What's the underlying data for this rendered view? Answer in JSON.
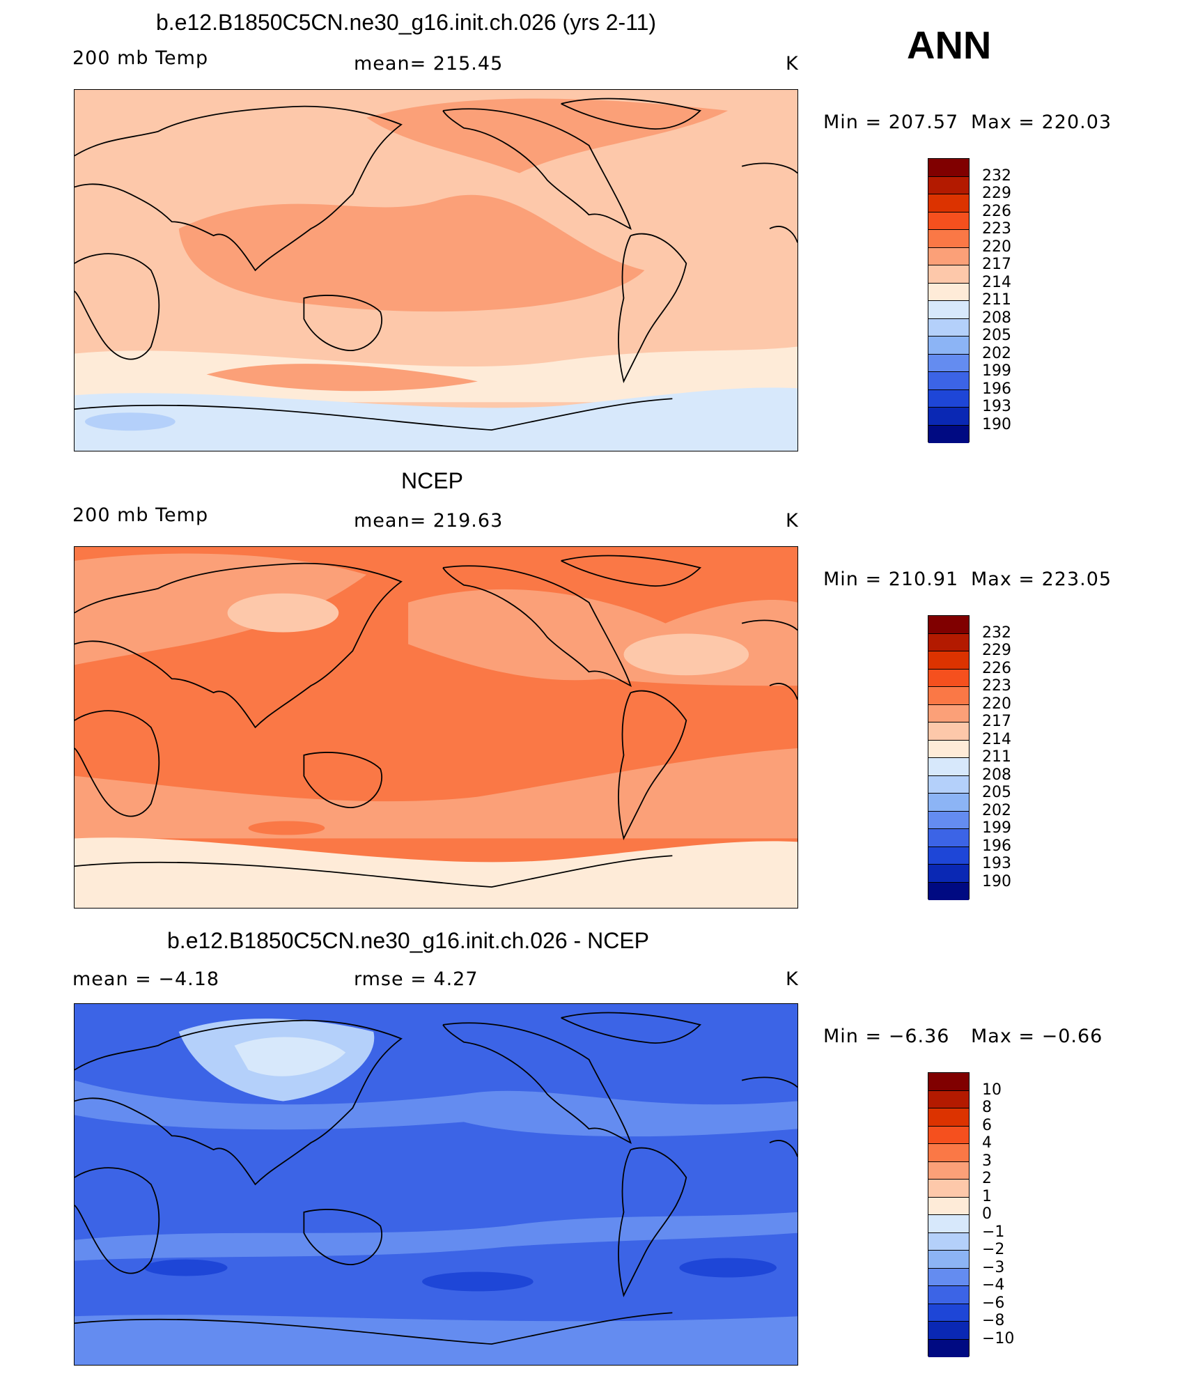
{
  "season": "ANN",
  "panels": [
    {
      "id": "model",
      "title": "b.e12.B1850C5CN.ne30_g16.init.ch.026 (yrs 2-11)",
      "left_label": "200 mb Temp",
      "center_label": "mean=  215.45",
      "units": "K",
      "min_label": "Min  =  207.57",
      "max_label": "Max  =  220.03",
      "colorbar_labels": [
        "232",
        "229",
        "226",
        "223",
        "220",
        "217",
        "214",
        "211",
        "208",
        "205",
        "202",
        "199",
        "196",
        "193",
        "190"
      ]
    },
    {
      "id": "ncep",
      "title": "NCEP",
      "left_label": "200 mb Temp",
      "center_label": "mean=  219.63",
      "units": "K",
      "min_label": "Min  =  210.91",
      "max_label": "Max  =  223.05",
      "colorbar_labels": [
        "232",
        "229",
        "226",
        "223",
        "220",
        "217",
        "214",
        "211",
        "208",
        "205",
        "202",
        "199",
        "196",
        "193",
        "190"
      ]
    },
    {
      "id": "diff",
      "title": "b.e12.B1850C5CN.ne30_g16.init.ch.026 - NCEP",
      "left_label": "mean =    −4.18",
      "center_label": "rmse =     4.27",
      "units": "K",
      "min_label": "Min  =    −6.36",
      "max_label": "Max  =    −0.66",
      "colorbar_labels": [
        "10",
        "8",
        "6",
        "4",
        "3",
        "2",
        "1",
        "0",
        "−1",
        "−2",
        "−3",
        "−4",
        "−6",
        "−8",
        "−10"
      ]
    }
  ],
  "colors": {
    "palette": [
      "#800000",
      "#b31a00",
      "#dc3300",
      "#f5501e",
      "#fa7846",
      "#fba078",
      "#fdc8aa",
      "#feebd8",
      "#d7e8fb",
      "#b4d0fa",
      "#8cb4f5",
      "#648cf0",
      "#3c64e6",
      "#1e46d7",
      "#0a28b4",
      "#000a82"
    ],
    "coast": "#000000",
    "background": "#ffffff"
  },
  "map_fields": {
    "model": {
      "base": "#fdc8aa",
      "warm_band": "#fba078",
      "polar": "#d7e8fb",
      "pole_patch": "#b4d0fa",
      "midlat": "#feebd8"
    },
    "ncep": {
      "base": "#fa7846",
      "warm_band": "#fa7846",
      "polar": "#feebd8",
      "midlat": "#fba078",
      "blob": "#fdc8aa"
    },
    "diff": {
      "base": "#3c64e6",
      "band": "#648cf0",
      "asia": "#b4d0fa",
      "asia_core": "#d7e8fb",
      "dark": "#1e46d7"
    }
  }
}
